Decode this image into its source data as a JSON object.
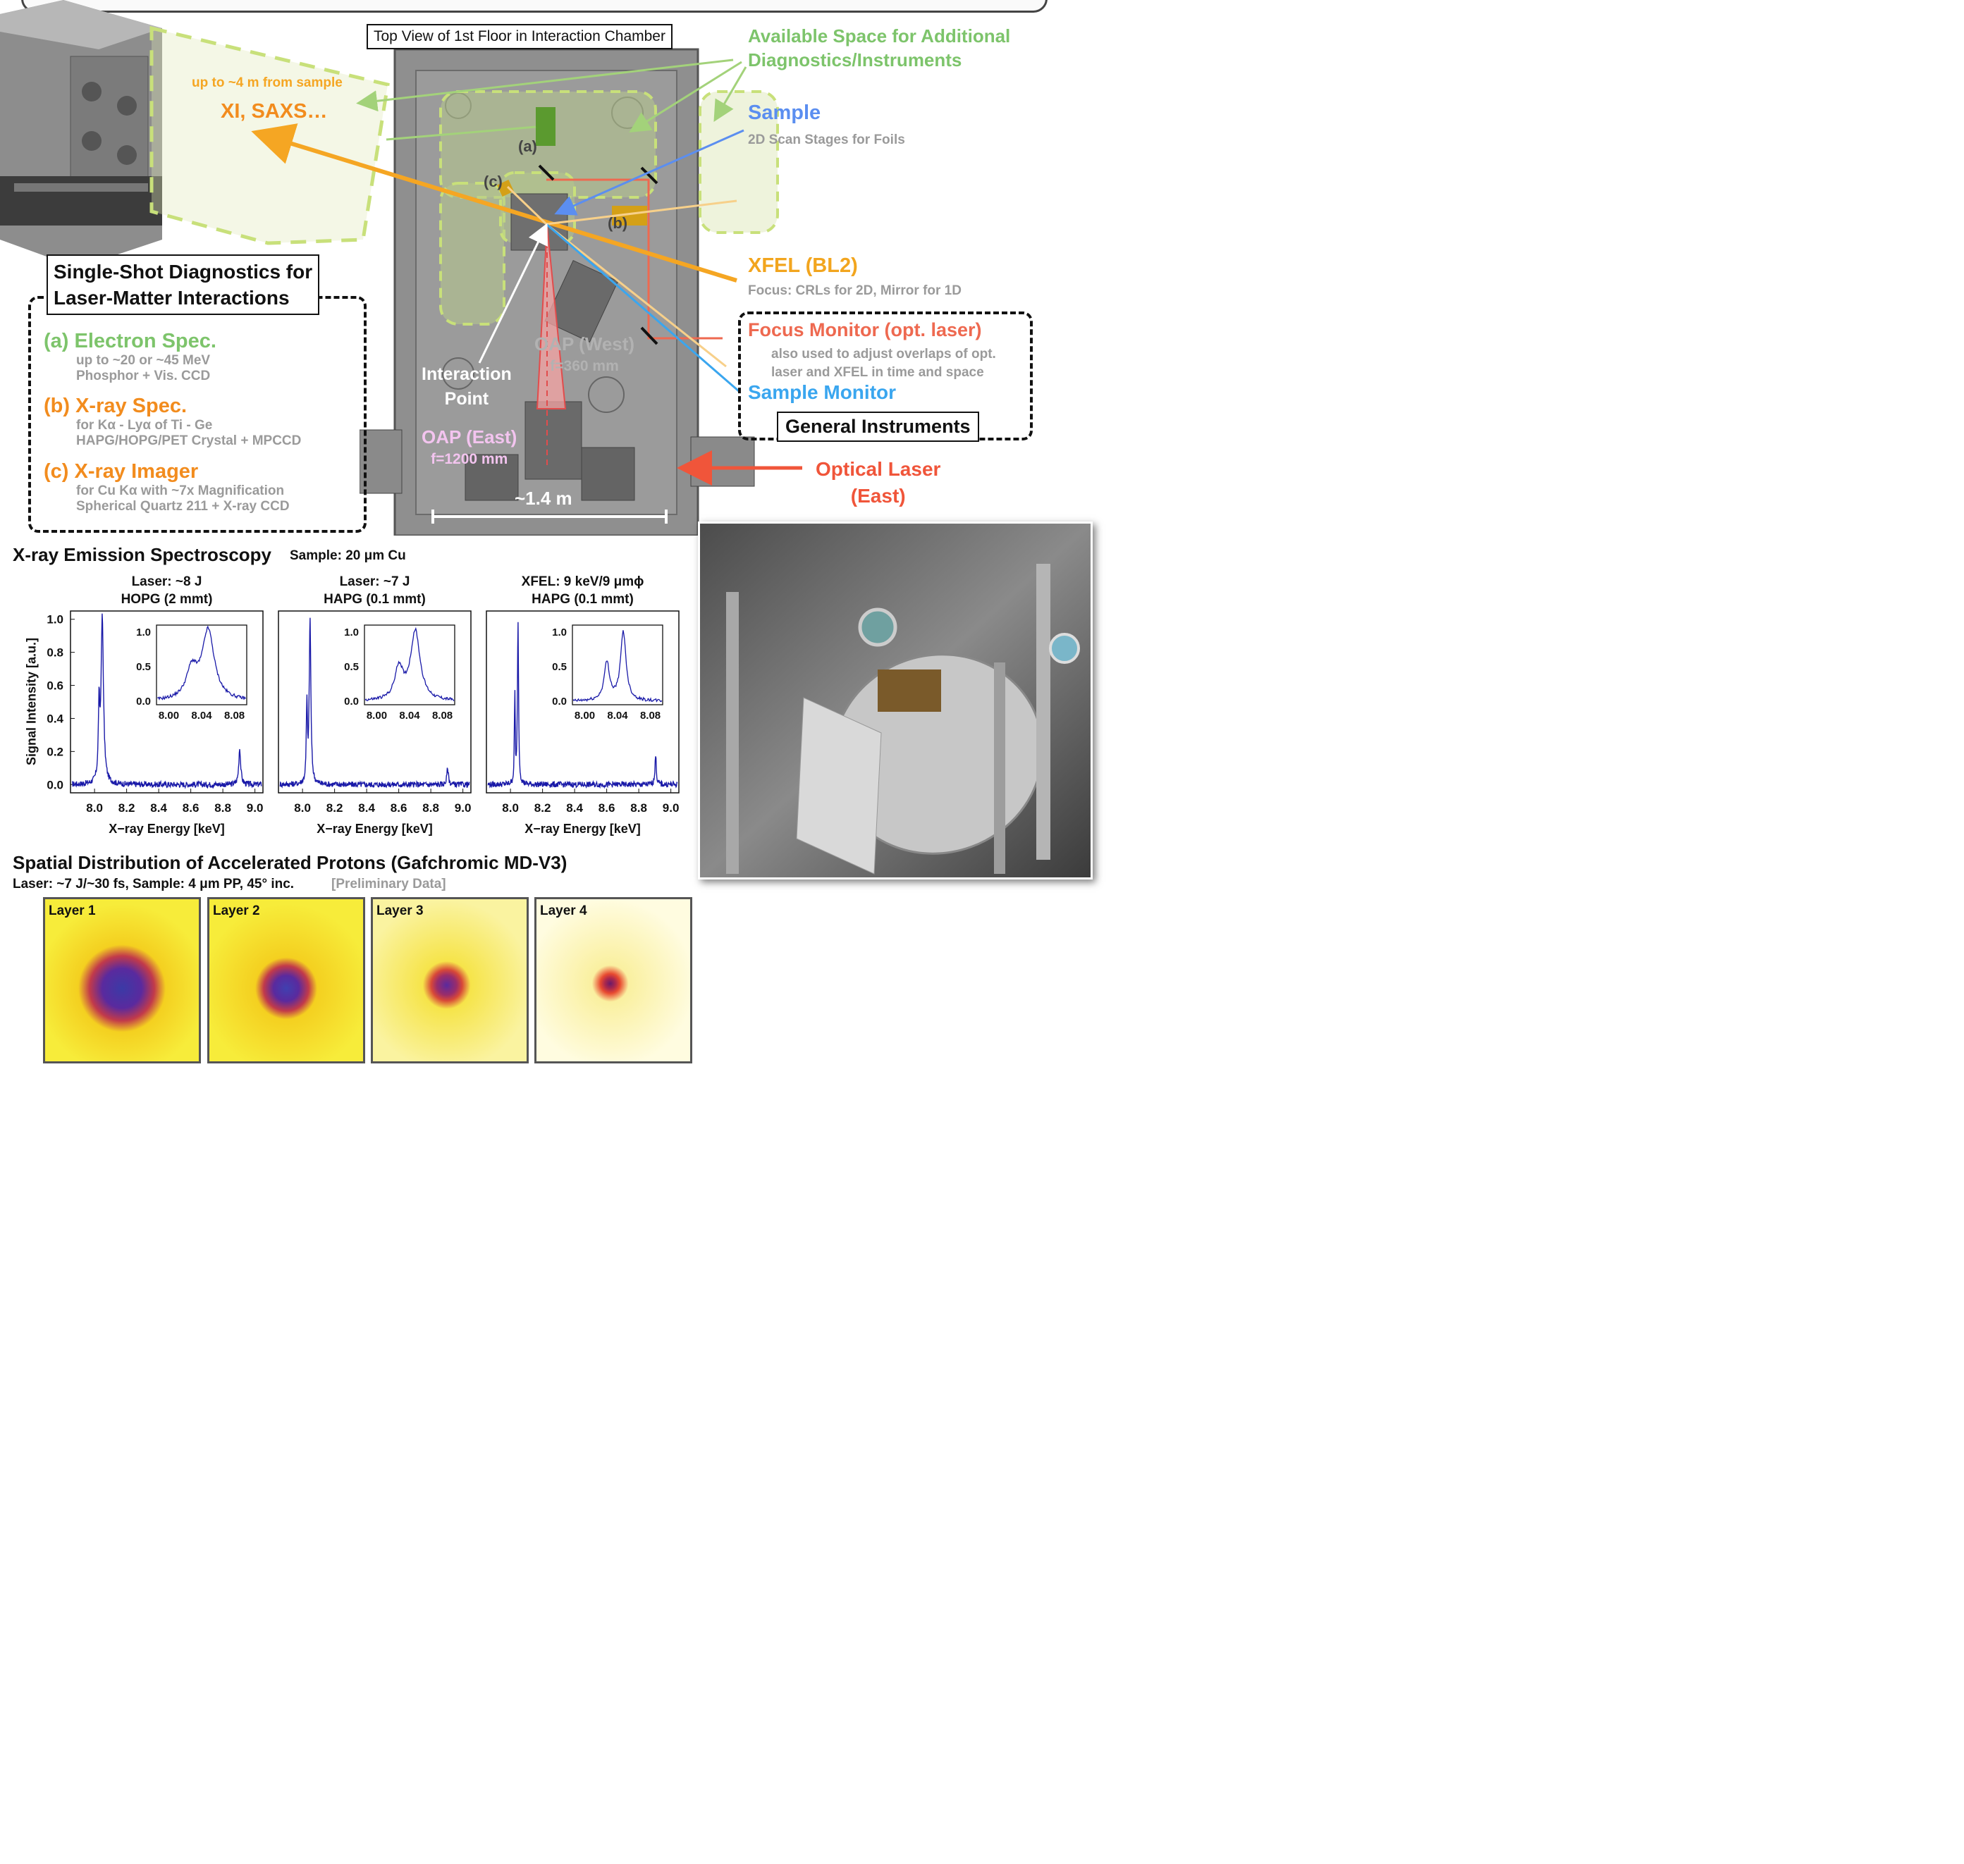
{
  "chamber": {
    "title": "Top View of 1st Floor in Interaction Chamber",
    "scale": "~1.4 m",
    "markers": {
      "a": "(a)",
      "b": "(b)",
      "c": "(c)"
    },
    "interaction_point": [
      "Interaction",
      "Point"
    ],
    "oap_west": [
      "OAP (West)",
      "f=360 mm"
    ],
    "oap_east": [
      "OAP (East)",
      "f=1200 mm"
    ]
  },
  "labels": {
    "distance": "up to ~4 m from sample",
    "xi_saxs": "XI, SAXS…",
    "available_space": [
      "Available Space for Additional",
      "Diagnostics/Instruments"
    ],
    "sample_title": "Sample",
    "sample_sub": "2D Scan Stages for Foils",
    "xfel_title": "XFEL (BL2)",
    "xfel_sub": "Focus: CRLs for 2D, Mirror for 1D",
    "focus_title": "Focus Monitor (opt. laser)",
    "focus_sub": [
      "also used to adjust overlaps of opt.",
      "laser and XFEL in time and space"
    ],
    "sample_monitor": "Sample Monitor",
    "general_instruments": "General Instruments",
    "optical_laser": [
      "Optical Laser",
      "(East)"
    ]
  },
  "diagnostics": {
    "title": [
      "Single-Shot Diagnostics for",
      "Laser-Matter Interactions"
    ],
    "items": [
      {
        "title": "(a) Electron Spec.",
        "lines": [
          "up to ~20 or ~45 MeV",
          "Phosphor + Vis. CCD"
        ]
      },
      {
        "title": "(b) X-ray Spec.",
        "lines": [
          "for Kα - Lyα of Ti - Ge",
          "HAPG/HOPG/PET Crystal + MPCCD"
        ]
      },
      {
        "title": "(c) X-ray Imager",
        "lines": [
          "for Cu Kα with ~7x Magnification",
          "Spherical Quartz 211 + X-ray CCD"
        ]
      }
    ]
  },
  "spectroscopy": {
    "title": "X-ray Emission Spectroscopy",
    "sample": "Sample: 20 μm Cu",
    "ylabel": "Signal Intensity [a.u.]"
  },
  "chart_data": [
    {
      "type": "line",
      "title": [
        "Laser: ~8 J",
        "HOPG (2 mmt)"
      ],
      "xlabel": "X−ray Energy [keV]",
      "xlim": [
        7.85,
        9.05
      ],
      "ylim": [
        -0.05,
        1.05
      ],
      "xticks": [
        "8.0",
        "8.2",
        "8.4",
        "8.6",
        "8.8",
        "9.0"
      ],
      "yticks": [
        "0.0",
        "0.2",
        "0.4",
        "0.6",
        "0.8",
        "1.0"
      ],
      "peaks": [
        {
          "x": 8.028,
          "y": 0.42,
          "w": 0.005
        },
        {
          "x": 8.048,
          "y": 1.0,
          "w": 0.009
        },
        {
          "x": 8.905,
          "y": 0.22,
          "w": 0.007
        }
      ],
      "baseline": 0.0,
      "inset": {
        "xlim": [
          7.985,
          8.095
        ],
        "ylim": [
          -0.05,
          1.1
        ],
        "xticks": [
          "8.00",
          "8.04",
          "8.08"
        ],
        "yticks": [
          "0.0",
          "0.5",
          "1.0"
        ],
        "peaks": [
          {
            "x": 8.028,
            "y": 0.42,
            "w": 0.008
          },
          {
            "x": 8.048,
            "y": 1.0,
            "w": 0.009
          }
        ]
      }
    },
    {
      "type": "line",
      "title": [
        "Laser: ~7 J",
        "HAPG (0.1 mmt)"
      ],
      "xlabel": "X−ray Energy [keV]",
      "xlim": [
        7.85,
        9.05
      ],
      "ylim": [
        -0.05,
        1.05
      ],
      "xticks": [
        "8.0",
        "8.2",
        "8.4",
        "8.6",
        "8.8",
        "9.0"
      ],
      "yticks": [],
      "peaks": [
        {
          "x": 8.027,
          "y": 0.46,
          "w": 0.004
        },
        {
          "x": 8.047,
          "y": 1.0,
          "w": 0.006
        },
        {
          "x": 8.905,
          "y": 0.1,
          "w": 0.006
        }
      ],
      "baseline": 0.0,
      "inset": {
        "xlim": [
          7.985,
          8.095
        ],
        "ylim": [
          -0.05,
          1.1
        ],
        "xticks": [
          "8.00",
          "8.04",
          "8.08"
        ],
        "yticks": [
          "0.0",
          "0.5",
          "1.0"
        ],
        "peaks": [
          {
            "x": 8.027,
            "y": 0.46,
            "w": 0.006
          },
          {
            "x": 8.047,
            "y": 1.0,
            "w": 0.007
          }
        ]
      }
    },
    {
      "type": "line",
      "title": [
        "XFEL: 9 keV/9 μmϕ",
        "HAPG (0.1 mmt)"
      ],
      "xlabel": "X−ray Energy [keV]",
      "xlim": [
        7.85,
        9.05
      ],
      "ylim": [
        -0.05,
        1.05
      ],
      "xticks": [
        "8.0",
        "8.2",
        "8.4",
        "8.6",
        "8.8",
        "9.0"
      ],
      "yticks": [],
      "peaks": [
        {
          "x": 8.027,
          "y": 0.55,
          "w": 0.003
        },
        {
          "x": 8.047,
          "y": 1.0,
          "w": 0.004
        },
        {
          "x": 8.905,
          "y": 0.18,
          "w": 0.005
        }
      ],
      "baseline": 0.0,
      "inset": {
        "xlim": [
          7.985,
          8.095
        ],
        "ylim": [
          -0.05,
          1.1
        ],
        "xticks": [
          "8.00",
          "8.04",
          "8.08"
        ],
        "yticks": [
          "0.0",
          "0.5",
          "1.0"
        ],
        "peaks": [
          {
            "x": 8.027,
            "y": 0.55,
            "w": 0.004
          },
          {
            "x": 8.047,
            "y": 1.0,
            "w": 0.004
          }
        ]
      }
    }
  ],
  "protons": {
    "title": "Spatial Distribution of Accelerated Protons (Gafchromic MD-V3)",
    "subtitle": "Laser: ~7 J/~30 fs, Sample: 4 μm PP, 45° inc.",
    "note": "[Preliminary Data]",
    "layers": [
      "Layer 1",
      "Layer 2",
      "Layer 3",
      "Layer 4"
    ]
  }
}
